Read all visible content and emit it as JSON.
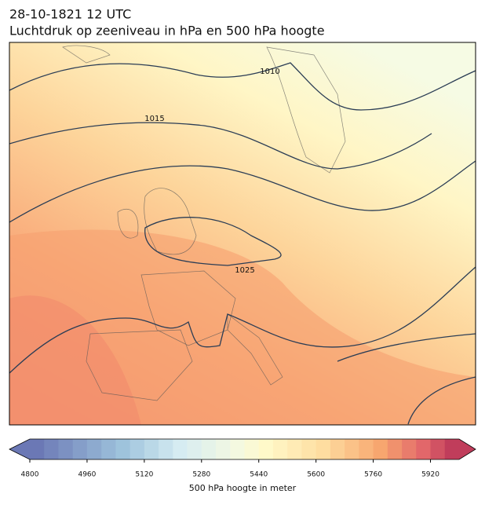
{
  "header": {
    "title_line1": "28-10-1821 12 UTC",
    "title_line2": "Luchtdruk op zeeniveau in hPa en 500 hPa hoogte"
  },
  "map": {
    "contour_labels": [
      "1010",
      "1015",
      "1025"
    ]
  },
  "colorbar": {
    "vlim": [
      4800,
      6000
    ],
    "ticks": [
      4800,
      4960,
      5120,
      5280,
      5440,
      5600,
      5760,
      5920
    ],
    "label": "500 hPa hoogte in meter"
  }
}
